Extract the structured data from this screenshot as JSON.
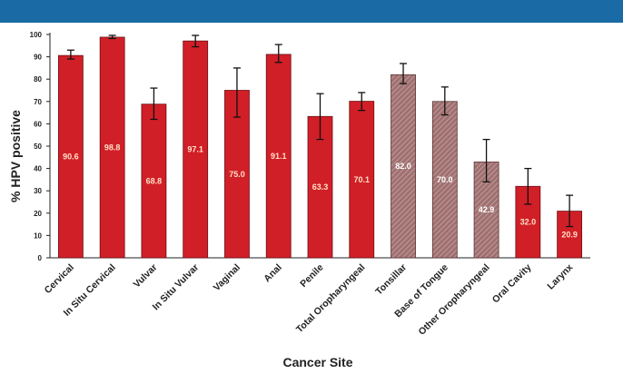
{
  "header": {
    "color": "#1a6ba5"
  },
  "chart_data": {
    "type": "bar",
    "xlabel": "Cancer Site",
    "ylabel": "% HPV positive",
    "ylim": [
      0,
      100
    ],
    "yticks": [
      0,
      10,
      20,
      30,
      40,
      50,
      60,
      70,
      80,
      90,
      100
    ],
    "grid": false,
    "categories": [
      "Cervical",
      "In Situ Cervical",
      "Vulvar",
      "In Situ Vulvar",
      "Vaginal",
      "Anal",
      "Penile",
      "Total Oropharyngeal",
      "Tonsillar",
      "Base of Tongue",
      "Other Oropharyngeal",
      "Oral Cavity",
      "Larynx"
    ],
    "values": [
      90.6,
      98.8,
      68.8,
      97.1,
      75.0,
      91.1,
      63.3,
      70.1,
      82.0,
      70.0,
      42.9,
      32.0,
      20.9
    ],
    "value_labels": [
      "90.6",
      "98.8",
      "68.8",
      "97.1",
      "75.0",
      "91.1",
      "63.3",
      "70.1",
      "82.0",
      "70.0",
      "42.9",
      "32.0",
      "20.9"
    ],
    "error_bars": [
      [
        89,
        93
      ],
      [
        98.2,
        99.6
      ],
      [
        62,
        76
      ],
      [
        94.5,
        99.6
      ],
      [
        63,
        85
      ],
      [
        87.5,
        95.5
      ],
      [
        53,
        73.5
      ],
      [
        66,
        74
      ],
      [
        78,
        87
      ],
      [
        64,
        76.5
      ],
      [
        34,
        53
      ],
      [
        24,
        40
      ],
      [
        14,
        28
      ]
    ],
    "bar_styles": [
      "solid",
      "solid",
      "solid",
      "solid",
      "solid",
      "solid",
      "solid",
      "solid",
      "hatched",
      "hatched",
      "hatched",
      "solid",
      "solid"
    ],
    "colors": {
      "solid": "#d11f27",
      "solid_edge": "#6b1015",
      "hatched": "#a07070",
      "hatched_line": "#c8a8a8",
      "hatched_edge": "#5a3030",
      "axis": "#222222"
    }
  }
}
